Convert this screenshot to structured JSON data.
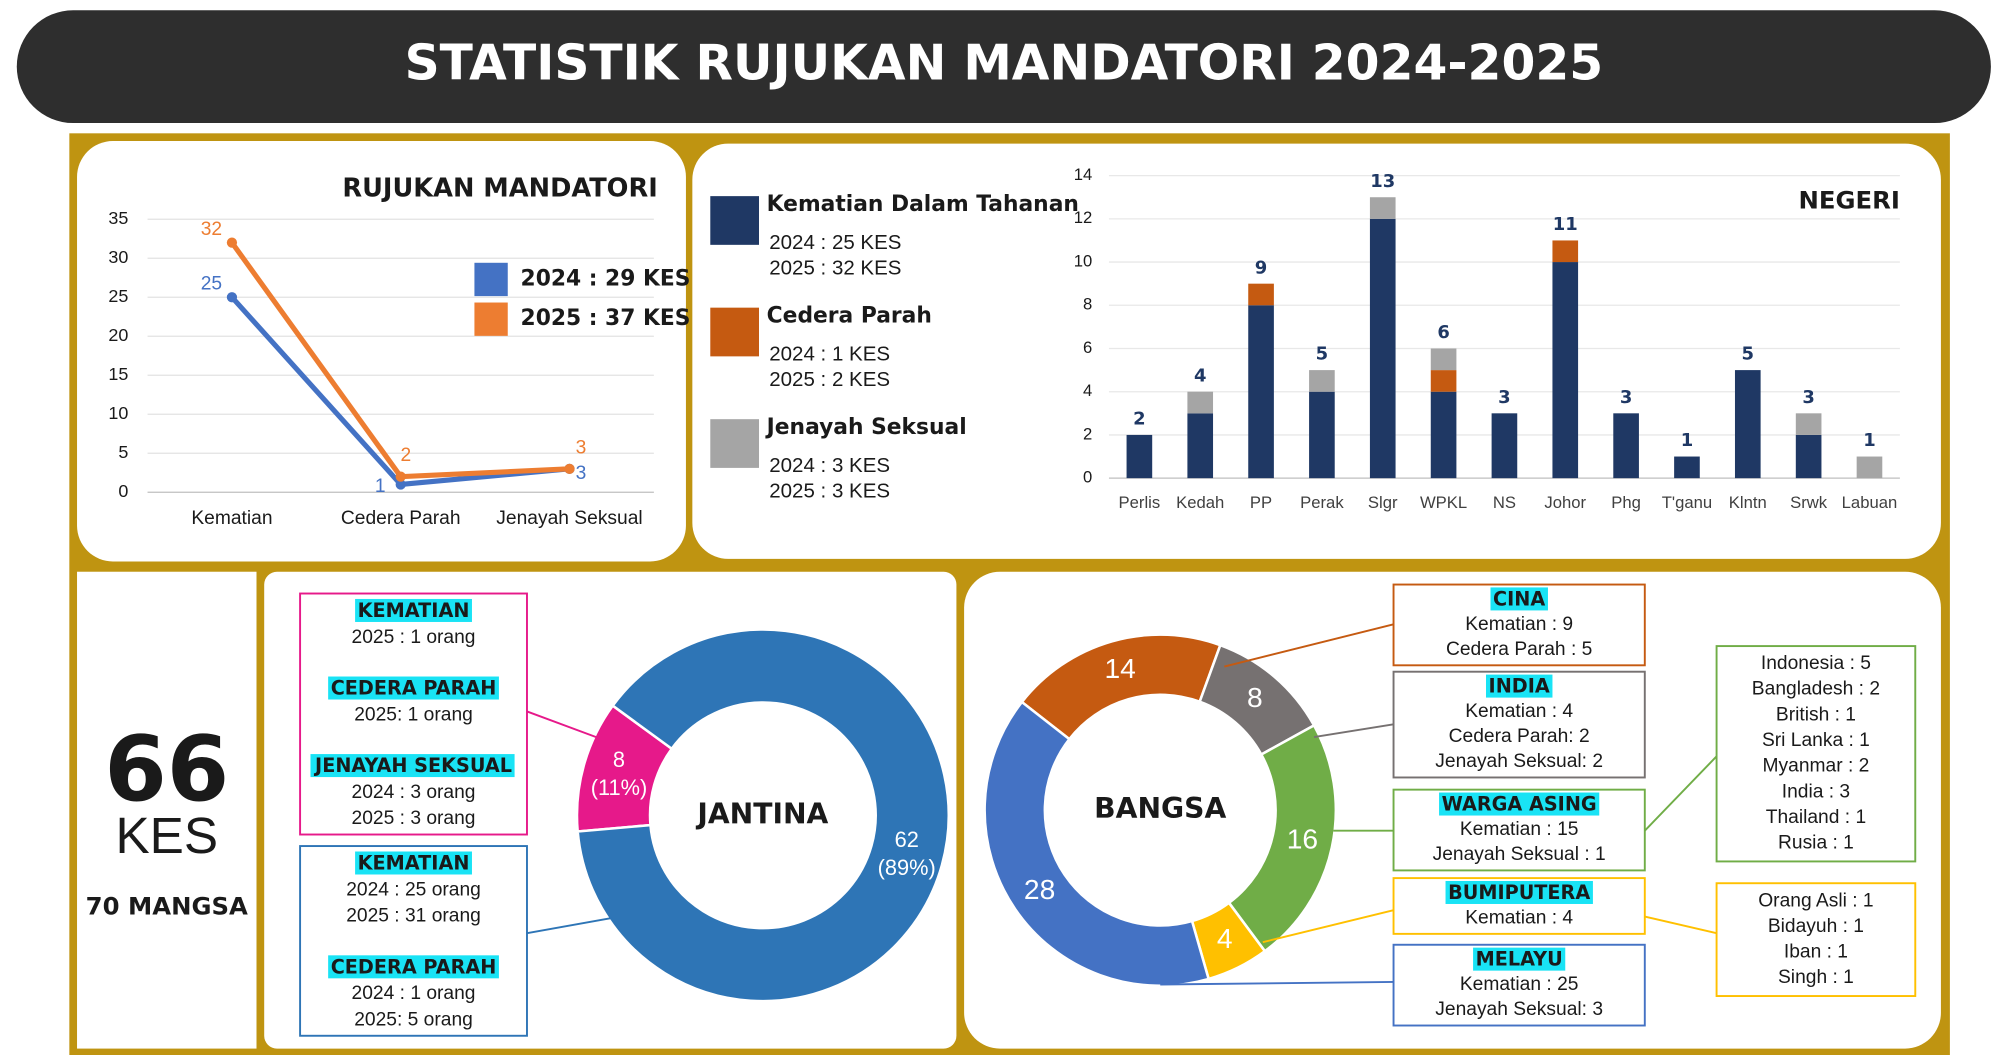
{
  "header": {
    "title": "STATISTIK RUJUKAN MANDATORI 2024-2025"
  },
  "summary": {
    "total": 66,
    "unit": "KES",
    "victims": "70 MANGSA"
  },
  "chart_data": [
    {
      "type": "line",
      "title": "RUJUKAN MANDATORI",
      "categories": [
        "Kematian",
        "Cedera Parah",
        "Jenayah Seksual"
      ],
      "series": [
        {
          "name": "2024 : 29 KES",
          "color": "#4472c4",
          "values": [
            25,
            1,
            3
          ]
        },
        {
          "name": "2025 : 37 KES",
          "color": "#ed7d31",
          "values": [
            32,
            2,
            3
          ]
        }
      ],
      "ylim": [
        0,
        35
      ],
      "yticks": [
        0,
        5,
        10,
        15,
        20,
        25,
        30,
        35
      ],
      "grid": true,
      "legend": "upper-right"
    },
    {
      "type": "stacked_bar",
      "title": "NEGERI",
      "categories": [
        "Perlis",
        "Kedah",
        "PP",
        "Perak",
        "Slgr",
        "WPKL",
        "NS",
        "Johor",
        "Phg",
        "T'ganu",
        "Klntn",
        "Srwk",
        "Labuan"
      ],
      "series": [
        {
          "name": "Kematian Dalam Tahanan",
          "color": "#1f3864",
          "details": [
            "2024 : 25 KES",
            "2025 : 32 KES"
          ],
          "values": [
            2,
            3,
            8,
            4,
            12,
            4,
            3,
            10,
            3,
            1,
            5,
            2,
            0
          ]
        },
        {
          "name": "Cedera Parah",
          "color": "#c55a11",
          "details": [
            "2024 : 1 KES",
            "2025 : 2 KES"
          ],
          "values": [
            0,
            0,
            1,
            0,
            0,
            1,
            0,
            1,
            0,
            0,
            0,
            0,
            0
          ]
        },
        {
          "name": "Jenayah Seksual",
          "color": "#a5a5a5",
          "details": [
            "2024 : 3 KES",
            "2025 : 3 KES"
          ],
          "values": [
            0,
            1,
            0,
            1,
            1,
            1,
            0,
            0,
            0,
            0,
            0,
            1,
            1
          ]
        }
      ],
      "totals": [
        2,
        4,
        9,
        5,
        13,
        6,
        3,
        11,
        3,
        1,
        5,
        3,
        1
      ],
      "ylim": [
        0,
        14
      ],
      "yticks": [
        0,
        2,
        4,
        6,
        8,
        10,
        12,
        14
      ],
      "grid": true
    },
    {
      "type": "donut",
      "title": "JANTINA",
      "values": [
        8,
        62
      ],
      "colors": [
        "#e6198a",
        "#2e75b6"
      ],
      "percents": [
        {
          "value": 11,
          "label": "(11%)"
        },
        {
          "value": 89,
          "label": "(89%)"
        }
      ],
      "notes": [
        {
          "color": "#e6198a",
          "groups": [
            {
              "heading": "KEMATIAN",
              "lines": [
                "2025 : 1 orang"
              ]
            },
            {
              "heading": "CEDERA PARAH",
              "lines": [
                "2025: 1 orang"
              ]
            },
            {
              "heading": "JENAYAH SEKSUAL",
              "lines": [
                "2024 : 3 orang",
                "2025 : 3 orang"
              ]
            }
          ]
        },
        {
          "color": "#2e75b6",
          "groups": [
            {
              "heading": "KEMATIAN",
              "lines": [
                "2024 : 25 orang",
                "2025 : 31 orang"
              ]
            },
            {
              "heading": "CEDERA PARAH",
              "lines": [
                "2024 : 1 orang",
                "2025: 5 orang"
              ]
            }
          ]
        }
      ]
    },
    {
      "type": "donut",
      "title": "BANGSA",
      "values": [
        14,
        8,
        16,
        4,
        28
      ],
      "colors": [
        "#c55a11",
        "#767171",
        "#70ad47",
        "#ffc000",
        "#4472c4"
      ],
      "notes": [
        {
          "color": "#c55a11",
          "groups": [
            {
              "heading": "CINA",
              "lines": [
                "Kematian : 9",
                "Cedera Parah : 5"
              ]
            }
          ]
        },
        {
          "color": "#767171",
          "groups": [
            {
              "heading": "INDIA",
              "lines": [
                "Kematian : 4",
                "Cedera Parah: 2",
                "Jenayah Seksual: 2"
              ]
            }
          ]
        },
        {
          "color": "#70ad47",
          "groups": [
            {
              "heading": "WARGA ASING",
              "lines": [
                "Kematian : 15",
                "Jenayah Seksual : 1"
              ]
            }
          ],
          "breakdown": [
            "Indonesia : 5",
            "Bangladesh : 2",
            "British : 1",
            "Sri Lanka : 1",
            "Myanmar : 2",
            "India : 3",
            "Thailand : 1",
            "Rusia : 1"
          ]
        },
        {
          "color": "#ffc000",
          "groups": [
            {
              "heading": "BUMIPUTERA",
              "lines": [
                "Kematian : 4"
              ]
            }
          ],
          "breakdown": [
            "Orang Asli : 1",
            "Bidayuh : 1",
            "Iban : 1",
            "Singh : 1"
          ]
        },
        {
          "color": "#4472c4",
          "groups": [
            {
              "heading": "MELAYU",
              "lines": [
                "Kematian : 25",
                "Jenayah Seksual: 3"
              ]
            }
          ]
        }
      ]
    }
  ]
}
